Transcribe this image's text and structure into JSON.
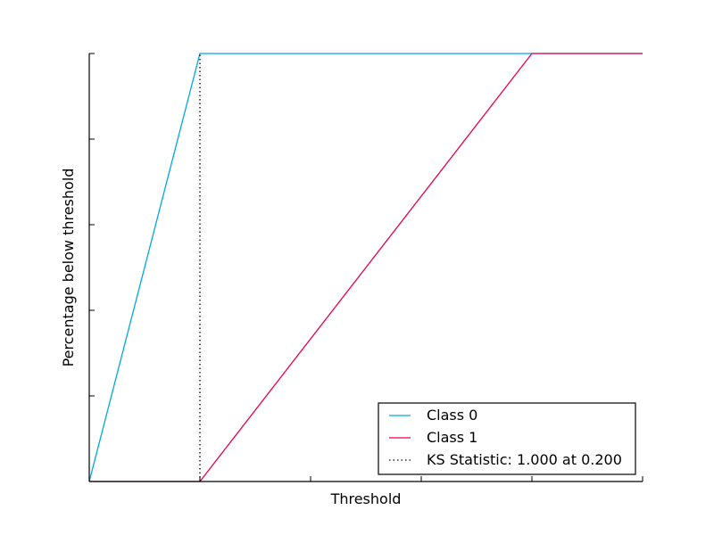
{
  "chart_data": {
    "type": "line",
    "title": "",
    "xlabel": "Threshold",
    "ylabel": "Percentage below threshold",
    "xlim": [
      0,
      1
    ],
    "ylim": [
      0,
      1
    ],
    "x_tick_count": 6,
    "y_tick_count": 6,
    "grid": false,
    "legend_position": "lower-right",
    "series": [
      {
        "name": "Class 0",
        "color": "#00a6e8",
        "line_style": "solid",
        "x": [
          0.0,
          0.2,
          1.0
        ],
        "y": [
          0.0,
          1.0,
          1.0
        ]
      },
      {
        "name": "Class 1",
        "color": "#e6004e",
        "line_style": "solid",
        "x": [
          0.0,
          0.2,
          0.8,
          1.0
        ],
        "y": [
          0.0,
          0.0,
          1.0,
          1.0
        ]
      }
    ],
    "ks_line": {
      "name": "KS Statistic: 1.000 at 0.200",
      "color": "#000000",
      "line_style": "dotted",
      "x": 0.2,
      "y_range": [
        0.0,
        1.0
      ]
    }
  }
}
